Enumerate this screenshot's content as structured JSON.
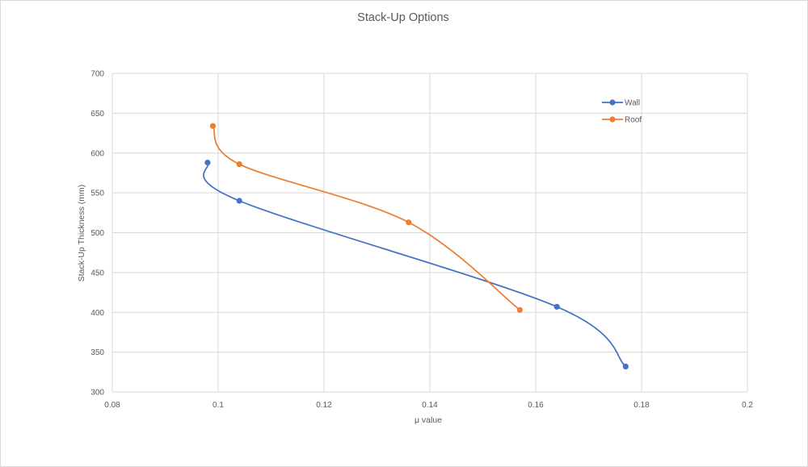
{
  "chart_data": {
    "type": "scatter",
    "title": "Stack-Up Options",
    "xlabel": "μ value",
    "ylabel": "Stack-Up Thickness (mm)",
    "xlim": [
      0.08,
      0.2
    ],
    "ylim": [
      300,
      700
    ],
    "xticks": [
      0.08,
      0.1,
      0.12,
      0.14,
      0.16,
      0.18,
      0.2
    ],
    "xtick_labels": [
      "0.08",
      "0.1",
      "0.12",
      "0.14",
      "0.16",
      "0.18",
      "0.2"
    ],
    "yticks": [
      300,
      350,
      400,
      450,
      500,
      550,
      600,
      650,
      700
    ],
    "ytick_labels": [
      "300",
      "350",
      "400",
      "450",
      "500",
      "550",
      "600",
      "650",
      "700"
    ],
    "grid": true,
    "legend_position": "top-right",
    "smooth_lines": true,
    "series": [
      {
        "name": "Wall",
        "color": "#4472c4",
        "points": [
          {
            "x": 0.098,
            "y": 588
          },
          {
            "x": 0.104,
            "y": 540
          },
          {
            "x": 0.164,
            "y": 407
          },
          {
            "x": 0.177,
            "y": 332
          }
        ]
      },
      {
        "name": "Roof",
        "color": "#ed7d31",
        "points": [
          {
            "x": 0.099,
            "y": 634
          },
          {
            "x": 0.104,
            "y": 586
          },
          {
            "x": 0.136,
            "y": 513
          },
          {
            "x": 0.157,
            "y": 403
          }
        ]
      }
    ]
  }
}
